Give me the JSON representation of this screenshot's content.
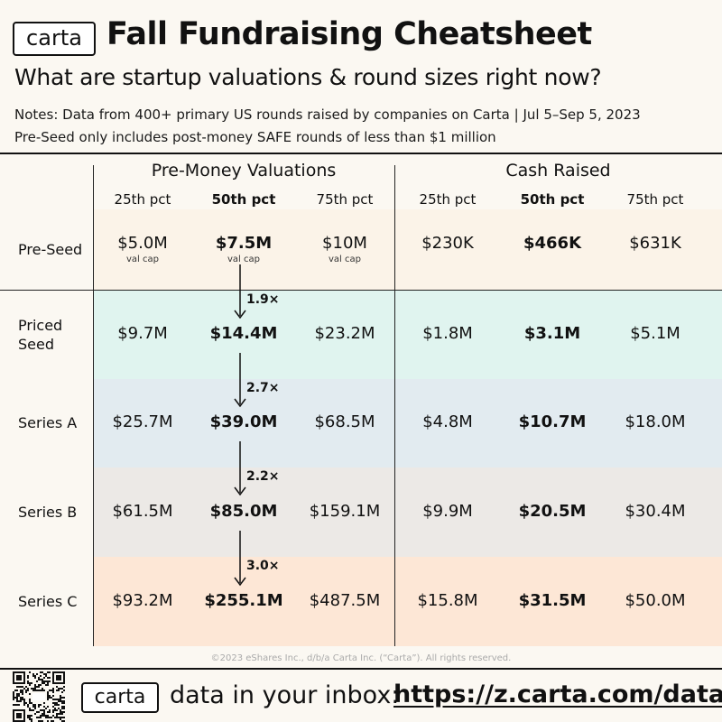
{
  "header": {
    "logo": "carta",
    "title": "Fall Fundraising Cheatsheet",
    "subtitle": "What are startup valuations & round sizes right now?",
    "note1": "Notes: Data from 400+ primary US rounds raised by companies on Carta | Jul 5–Sep 5, 2023",
    "note2": "Pre-Seed only includes post-money SAFE rounds of less than $1 million"
  },
  "colors": {
    "pre_seed": "#fbf3e8",
    "priced_seed": "#e0f4ef",
    "series_a": "#e2ebf0",
    "series_b": "#ece9e6",
    "series_c": "#fde7d6",
    "divider": "#222222"
  },
  "chart_data": {
    "type": "table",
    "groups": [
      "Pre-Money Valuations",
      "Cash Raised"
    ],
    "columns": [
      "25th pct",
      "50th pct",
      "75th pct",
      "25th pct",
      "50th pct",
      "75th pct"
    ],
    "rows": [
      {
        "label": "Pre-Seed",
        "values": [
          "$5.0M",
          "$7.5M",
          "$10M",
          "$230K",
          "$466K",
          "$631K"
        ],
        "sublabels": [
          "val cap",
          "val cap",
          "val cap"
        ]
      },
      {
        "label": "Priced Seed",
        "values": [
          "$9.7M",
          "$14.4M",
          "$23.2M",
          "$1.8M",
          "$3.1M",
          "$5.1M"
        ]
      },
      {
        "label": "Series A",
        "values": [
          "$25.7M",
          "$39.0M",
          "$68.5M",
          "$4.8M",
          "$10.7M",
          "$18.0M"
        ]
      },
      {
        "label": "Series B",
        "values": [
          "$61.5M",
          "$85.0M",
          "$159.1M",
          "$9.9M",
          "$20.5M",
          "$30.4M"
        ]
      },
      {
        "label": "Series C",
        "values": [
          "$93.2M",
          "$255.1M",
          "$487.5M",
          "$15.8M",
          "$31.5M",
          "$50.0M"
        ]
      }
    ],
    "multipliers": [
      "1.9×",
      "2.7×",
      "2.2×",
      "3.0×"
    ]
  },
  "footer": {
    "copyright": "©2023 eShares Inc., d/b/a Carta Inc. (“Carta”). All rights reserved.",
    "logo": "carta",
    "text": "data in your inbox:",
    "link": "https://z.carta.com/data",
    "qr_icon": "qr-code-icon"
  }
}
